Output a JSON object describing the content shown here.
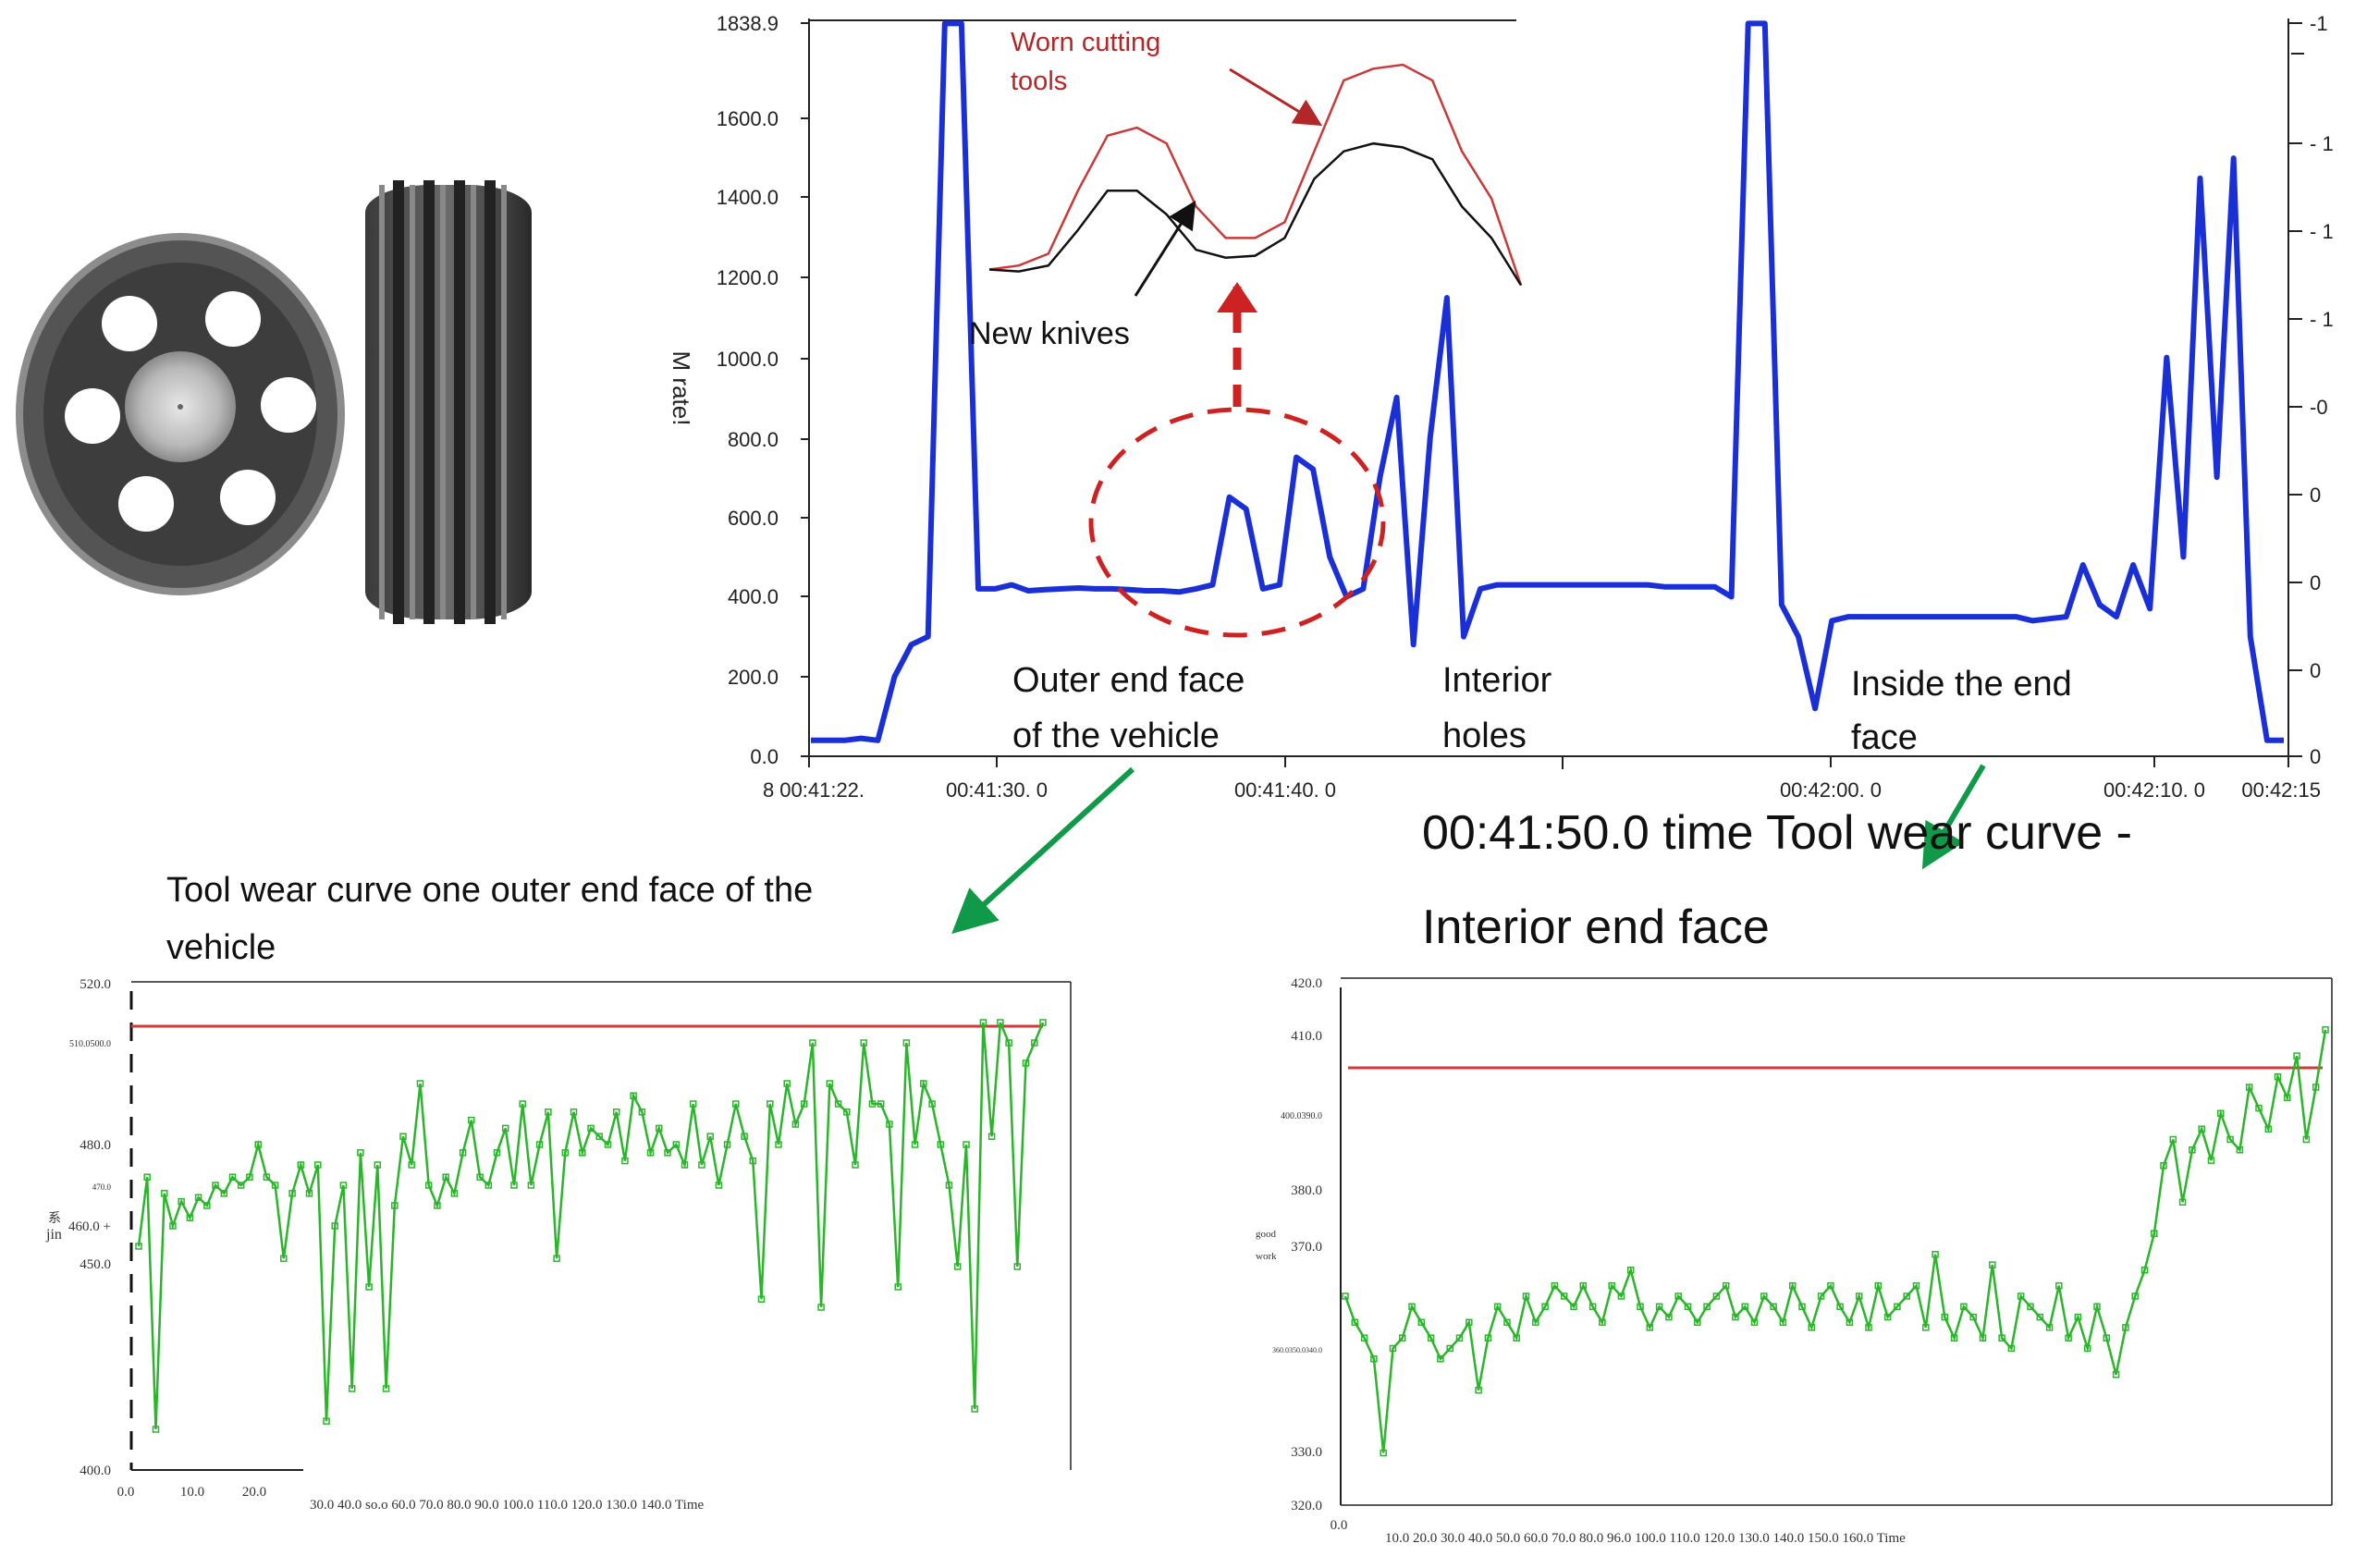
{
  "colors": {
    "main_line": "#1a2fd6",
    "worn_line": "#c83a3a",
    "new_line": "#111111",
    "wear_line": "#2bb52b",
    "limit_line": "#d23a3a",
    "ring": "#cc2222",
    "arrow_green": "#0f9948",
    "annotation_red": "#b22828"
  },
  "photo": {
    "name": "pulley-photo"
  },
  "main_chart": {
    "ylabel": "M rate!",
    "y_ticks": [
      "1838.9",
      "1600.0",
      "1400.0",
      "1200.0",
      "1000.0",
      "800.0",
      "600.0",
      "400.0",
      "200.0",
      "0.0"
    ],
    "x_ticks": [
      "8 00:41:22.",
      "00:41:30. 0",
      "00:41:40. 0",
      "00:42:00. 0",
      "00:42:10. 0",
      "00:42:15"
    ],
    "right_ticks": [
      "-1",
      "- 1",
      "- 1",
      "- 1",
      "-0",
      "0",
      "0",
      "0",
      "0"
    ],
    "annotations": {
      "worn": [
        "Worn cutting",
        "tools"
      ],
      "new": "New knives",
      "outer": [
        "Outer end face",
        "of the vehicle"
      ],
      "interior": [
        "Interior",
        "holes"
      ],
      "inside": [
        "Inside the end",
        "face"
      ]
    },
    "big_title": [
      "00:41:50.0 time Tool wear curve -",
      "Interior end face"
    ]
  },
  "left_chart": {
    "title": [
      "Tool wear curve one outer end face of the",
      "vehicle"
    ],
    "ylabel": "jin",
    "ylabel_small": "系",
    "y_ticks": [
      "520.0",
      "510.0500.0",
      "480.0",
      "470.0",
      "460.0 +",
      "450.0",
      "400.0"
    ],
    "x_ticks": [
      "0.0",
      "10.0",
      "20.0"
    ],
    "x_tail": "30.0 40.0 so.o 60.0 70.0 80.0 90.0 100.0 110.0 120.0 130.0 140.0 Time"
  },
  "right_chart": {
    "ylabel": [
      "good",
      "work"
    ],
    "y_ticks": [
      "420.0",
      "410.0",
      "400.0390.0",
      "380.0",
      "370.0",
      "360.0350.0340.0",
      "330.0",
      "320.0"
    ],
    "x_first": "0.0",
    "x_tail": "10.0 20.0 30.0 40.0 50.0 60.0 70.0 80.0 96.0 100.0 110.0 120.0 130.0 140.0 150.0 160.0 Time"
  },
  "chart_data": [
    {
      "type": "line",
      "name": "main-spindle-load",
      "ylim": [
        0,
        1838.9
      ],
      "series": [
        {
          "values": [
            40,
            40,
            40,
            45,
            40,
            200,
            280,
            300,
            1838,
            1838,
            420,
            420,
            430,
            415,
            418,
            420,
            422,
            420,
            420,
            418,
            415,
            415,
            412,
            420,
            430,
            650,
            620,
            420,
            430,
            750,
            720,
            500,
            400,
            420,
            700,
            900,
            280,
            800,
            1150,
            300,
            420,
            430,
            430,
            430,
            430,
            430,
            430,
            430,
            430,
            430,
            430,
            425,
            425,
            425,
            425,
            400,
            1838,
            1838,
            380,
            300,
            120,
            340,
            350,
            350,
            350,
            350,
            350,
            350,
            350,
            350,
            350,
            350,
            350,
            340,
            345,
            350,
            480,
            380,
            350,
            480,
            370,
            1000,
            500,
            1450,
            700,
            1500,
            300,
            40,
            40
          ]
        }
      ]
    },
    {
      "type": "line",
      "name": "inset-tool-comparison",
      "series": [
        {
          "name": "Worn cutting tools",
          "values": [
            1220,
            1230,
            1260,
            1420,
            1560,
            1580,
            1540,
            1380,
            1300,
            1300,
            1340,
            1520,
            1700,
            1730,
            1740,
            1700,
            1520,
            1400,
            1180
          ]
        },
        {
          "name": "New knives",
          "values": [
            1220,
            1215,
            1230,
            1320,
            1420,
            1420,
            1360,
            1270,
            1250,
            1255,
            1300,
            1450,
            1520,
            1540,
            1530,
            1500,
            1380,
            1300,
            1180
          ]
        }
      ]
    },
    {
      "type": "line",
      "name": "tool-wear-outer-end-face",
      "ylim": [
        400,
        520
      ],
      "series": [
        {
          "values": [
            455,
            472,
            410,
            468,
            460,
            466,
            462,
            467,
            465,
            470,
            468,
            472,
            470,
            472,
            480,
            472,
            470,
            452,
            468,
            475,
            468,
            475,
            412,
            460,
            470,
            420,
            478,
            445,
            475,
            420,
            465,
            482,
            475,
            495,
            470,
            465,
            472,
            468,
            478,
            486,
            472,
            470,
            478,
            484,
            470,
            490,
            470,
            480,
            488,
            452,
            478,
            488,
            478,
            484,
            482,
            480,
            488,
            476,
            492,
            488,
            478,
            484,
            478,
            480,
            475,
            490,
            475,
            482,
            470,
            480,
            490,
            482,
            476,
            442,
            490,
            480,
            495,
            485,
            490,
            505,
            440,
            495,
            490,
            488,
            475,
            505,
            490,
            490,
            485,
            445,
            505,
            480,
            495,
            490,
            480,
            470,
            450,
            480,
            415,
            510,
            482,
            510,
            505,
            450,
            500,
            505,
            510
          ]
        }
      ]
    },
    {
      "type": "line",
      "name": "tool-wear-interior-end-face",
      "ylim": [
        320,
        420
      ],
      "series": [
        {
          "values": [
            360,
            355,
            352,
            348,
            330,
            350,
            352,
            358,
            355,
            352,
            348,
            350,
            352,
            355,
            342,
            352,
            358,
            355,
            352,
            360,
            355,
            358,
            362,
            360,
            358,
            362,
            358,
            355,
            362,
            360,
            365,
            358,
            354,
            358,
            356,
            360,
            358,
            355,
            358,
            360,
            362,
            356,
            358,
            355,
            360,
            358,
            355,
            362,
            358,
            354,
            360,
            362,
            358,
            355,
            360,
            354,
            362,
            356,
            358,
            360,
            362,
            354,
            368,
            356,
            352,
            358,
            356,
            352,
            366,
            352,
            350,
            360,
            358,
            356,
            354,
            362,
            352,
            356,
            350,
            358,
            352,
            345,
            354,
            360,
            365,
            372,
            385,
            390,
            378,
            388,
            392,
            386,
            395,
            390,
            388,
            400,
            396,
            392,
            402,
            398,
            406,
            390,
            400,
            411
          ]
        }
      ]
    }
  ]
}
